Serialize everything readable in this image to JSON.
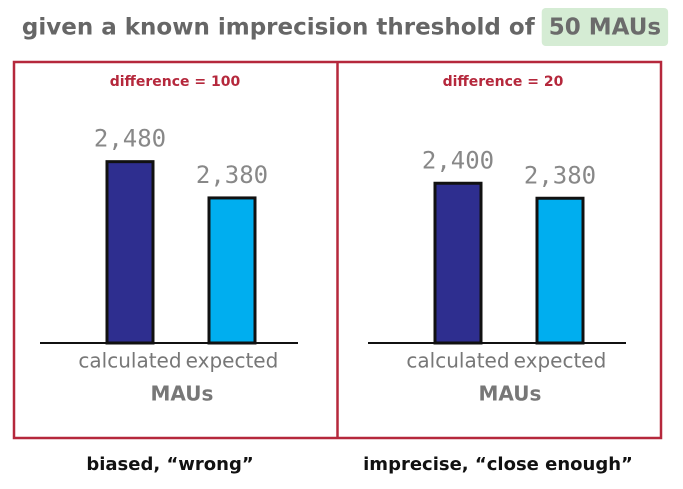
{
  "title": {
    "text": "given a known imprecision threshold of",
    "highlight": "50 MAUs"
  },
  "chart_data": [
    {
      "type": "bar",
      "subtitle": "difference = 100",
      "categories": [
        "calculated",
        "expected"
      ],
      "values": [
        2480,
        2380
      ],
      "value_labels": [
        "2,480",
        "2,380"
      ],
      "colors": [
        "#2e2e8f",
        "#00aeef"
      ],
      "x_label": "MAUs",
      "ylim": [
        1980,
        2650
      ],
      "caption": "biased, “wrong”"
    },
    {
      "type": "bar",
      "subtitle": "difference = 20",
      "categories": [
        "calculated",
        "expected"
      ],
      "values": [
        2400,
        2380
      ],
      "value_labels": [
        "2,400",
        "2,380"
      ],
      "colors": [
        "#2e2e8f",
        "#00aeef"
      ],
      "x_label": "MAUs",
      "ylim": [
        2187,
        2511
      ],
      "caption": "imprecise, “close enough”"
    }
  ]
}
